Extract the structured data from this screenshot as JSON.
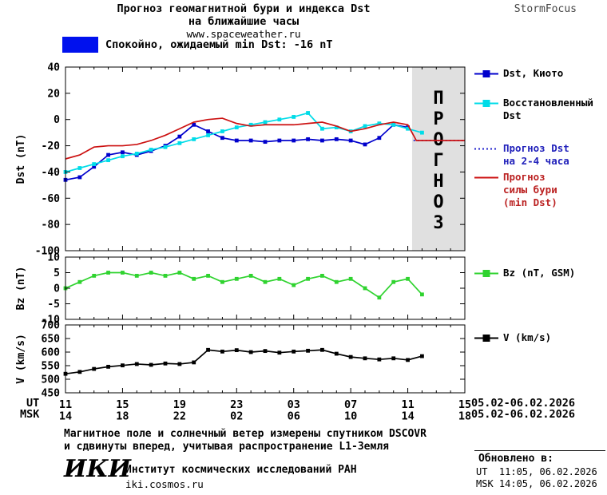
{
  "header": {
    "title_line1": "Прогноз геомагнитной бури и индекса Dst",
    "title_line2": "на ближайшие часы",
    "site": "www.spaceweather.ru",
    "brand": "StormFocus"
  },
  "status": {
    "text": "Спокойно, ожидаемый min Dst: -16 nT",
    "box_color": "#0011ee"
  },
  "legend": {
    "items": [
      {
        "label": "Dst, Киото",
        "color": "#0000cc",
        "text_color": "#000000",
        "line": "solid",
        "marker": true
      },
      {
        "label": "Восстановленный\nDst",
        "color": "#00dce8",
        "text_color": "#000000",
        "line": "solid",
        "marker": true
      },
      {
        "label": "Прогноз Dst\nна 2-4 часа",
        "color": "#2222cc",
        "text_color": "#2222bb",
        "line": "dotted",
        "marker": false
      },
      {
        "label": "Прогноз\nсилы бури\n(min Dst)",
        "color": "#cc1111",
        "text_color": "#bb2222",
        "line": "solid",
        "marker": false
      },
      {
        "label": "Bz (nT, GSM)",
        "color": "#2fd32f",
        "text_color": "#000000",
        "line": "solid",
        "marker": true
      },
      {
        "label": "V (km/s)",
        "color": "#000000",
        "text_color": "#000000",
        "line": "solid",
        "marker": true
      }
    ]
  },
  "xaxis": {
    "ut_label": "UT",
    "msk_label": "MSK",
    "ut_date": "05.02-06.02.2026",
    "msk_date": "05.02-06.02.2026"
  },
  "footer": {
    "note_line1": "Магнитное поле и солнечный ветер измерены спутником DSCOVR",
    "note_line2": "и сдвинуты вперед, учитывая распространение L1-Земля",
    "updated_title": "Обновлено в:",
    "updated_ut": "UT  11:05, 06.02.2026",
    "updated_msk": "MSK 14:05, 06.02.2026",
    "logo": "ИКИ",
    "org": "Институт космических исследований РАН",
    "org_site": "iki.cosmos.ru"
  },
  "chart_data": [
    {
      "type": "line",
      "panel": "dst",
      "ylabel": "Dst (nT)",
      "ylim": [
        -100,
        40
      ],
      "yticks": [
        40,
        20,
        0,
        -20,
        -40,
        -60,
        -80,
        -100
      ],
      "xlim": [
        0,
        28
      ],
      "xticks": [
        0,
        4,
        8,
        12,
        16,
        20,
        24,
        28
      ],
      "xtick_labels_ut": [
        "11",
        "15",
        "19",
        "23",
        "03",
        "07",
        "11",
        "15"
      ],
      "xtick_labels_msk": [
        "14",
        "18",
        "22",
        "02",
        "06",
        "10",
        "14",
        "18"
      ],
      "x_unit": "hours since 05.02.2026 11:00 UT",
      "forecast_band": {
        "from": 24.3,
        "to": 28,
        "label": "ПРОГНОЗ",
        "fill": "#e0e0e0",
        "label_color": "#b9b9b9"
      },
      "series": [
        {
          "name": "Dst, Киото",
          "color": "#0000cc",
          "line": "solid",
          "marker": true,
          "x": [
            0,
            1,
            2,
            3,
            4,
            5,
            6,
            7,
            8,
            9,
            10,
            11,
            12,
            13,
            14,
            15,
            16,
            17,
            18,
            19,
            20,
            21,
            22,
            23,
            24
          ],
          "y": [
            -46,
            -44,
            -36,
            -27,
            -25,
            -27,
            -24,
            -20,
            -13,
            -4,
            -9,
            -14,
            -16,
            -16,
            -17,
            -16,
            -16,
            -15,
            -16,
            -15,
            -16,
            -19,
            -14,
            -4,
            -6
          ]
        },
        {
          "name": "Восстановленный Dst",
          "color": "#00dce8",
          "line": "solid",
          "marker": true,
          "x": [
            0,
            1,
            2,
            3,
            4,
            5,
            6,
            7,
            8,
            9,
            10,
            11,
            12,
            13,
            14,
            15,
            16,
            17,
            18,
            19,
            20,
            21,
            22,
            23,
            24,
            25
          ],
          "y": [
            -40,
            -37,
            -34,
            -31,
            -28,
            -26,
            -23,
            -21,
            -18,
            -15,
            -12,
            -9,
            -6,
            -4,
            -2,
            0,
            2,
            5,
            -7,
            -6,
            -9,
            -5,
            -3,
            -4,
            -7,
            -10
          ]
        },
        {
          "name": "Прогноз Dst на 2-4 часа",
          "color": "#2222cc",
          "line": "dotted",
          "marker": false,
          "x": [
            24.4,
            28
          ],
          "y": [
            -16,
            -16
          ]
        },
        {
          "name": "Прогноз силы бури (min Dst)",
          "color": "#cc1111",
          "line": "solid",
          "marker": false,
          "x": [
            0,
            1,
            2,
            3,
            4,
            5,
            6,
            7,
            8,
            9,
            10,
            11,
            12,
            13,
            14,
            15,
            16,
            17,
            18,
            19,
            20,
            21,
            22,
            23,
            24,
            24.6,
            28
          ],
          "y": [
            -30,
            -27,
            -21,
            -20,
            -20,
            -19,
            -16,
            -12,
            -7,
            -2,
            0,
            1,
            -3,
            -5,
            -4,
            -4,
            -4,
            -3,
            -2,
            -5,
            -9,
            -7,
            -4,
            -2,
            -4,
            -16,
            -16
          ]
        }
      ]
    },
    {
      "type": "line",
      "panel": "bz",
      "ylabel": "Bz (nT)",
      "ylim": [
        -10,
        10
      ],
      "yticks": [
        10,
        5,
        0,
        -5,
        -10
      ],
      "xlim": [
        0,
        28
      ],
      "xticks": [
        0,
        4,
        8,
        12,
        16,
        20,
        24,
        28
      ],
      "series": [
        {
          "name": "Bz (nT, GSM)",
          "color": "#2fd32f",
          "line": "solid",
          "marker": true,
          "x": [
            0,
            1,
            2,
            3,
            4,
            5,
            6,
            7,
            8,
            9,
            10,
            11,
            12,
            13,
            14,
            15,
            16,
            17,
            18,
            19,
            20,
            21,
            22,
            23,
            24,
            25
          ],
          "y": [
            0,
            2,
            4,
            5,
            5,
            4,
            5,
            4,
            5,
            3,
            4,
            2,
            3,
            4,
            2,
            3,
            1,
            3,
            4,
            2,
            3,
            0,
            -3,
            2,
            3,
            -2
          ]
        }
      ]
    },
    {
      "type": "line",
      "panel": "v",
      "ylabel": "V (km/s)",
      "ylim": [
        450,
        700
      ],
      "yticks": [
        700,
        650,
        600,
        550,
        500,
        450
      ],
      "xlim": [
        0,
        28
      ],
      "xticks": [
        0,
        4,
        8,
        12,
        16,
        20,
        24,
        28
      ],
      "series": [
        {
          "name": "V (km/s)",
          "color": "#000000",
          "line": "solid",
          "marker": true,
          "x": [
            0,
            1,
            2,
            3,
            4,
            5,
            6,
            7,
            8,
            9,
            10,
            11,
            12,
            13,
            14,
            15,
            16,
            17,
            18,
            19,
            20,
            21,
            22,
            23,
            24,
            25
          ],
          "y": [
            520,
            527,
            538,
            546,
            551,
            556,
            553,
            558,
            556,
            562,
            608,
            602,
            607,
            600,
            604,
            598,
            602,
            605,
            608,
            594,
            582,
            577,
            573,
            577,
            571,
            585
          ]
        }
      ]
    }
  ]
}
